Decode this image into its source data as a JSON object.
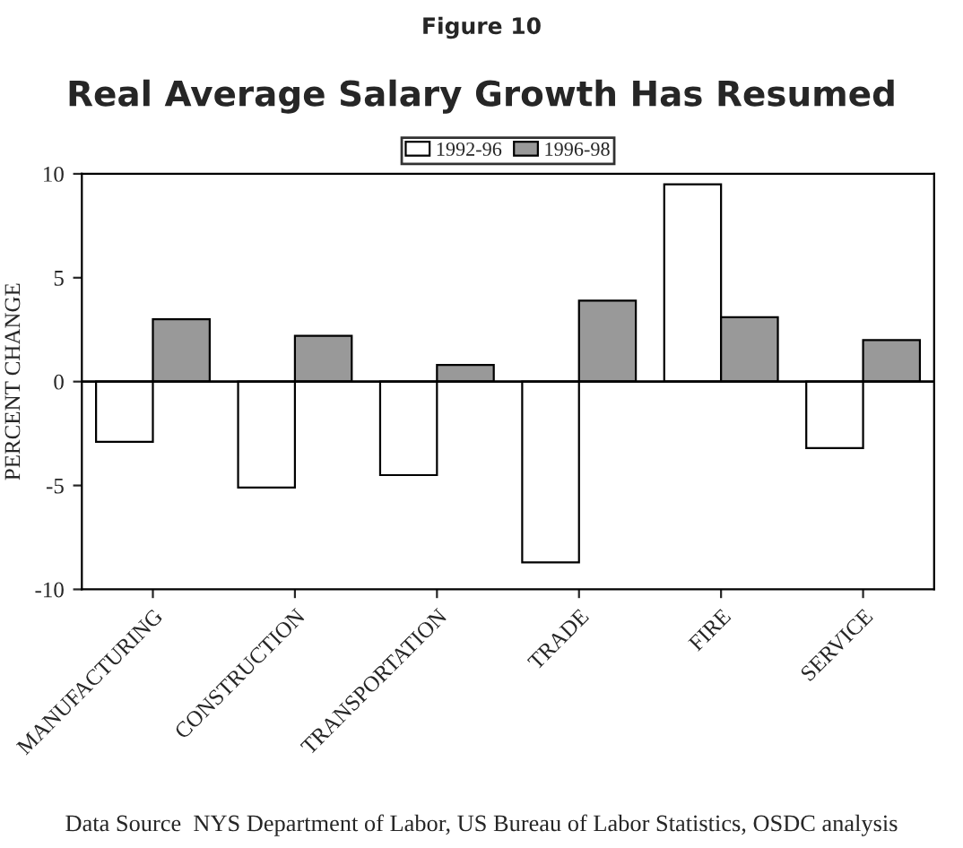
{
  "chart_data": {
    "type": "bar",
    "subtitle": "Figure 10",
    "title": "Real Average Salary Growth Has Resumed",
    "ylabel": "PERCENT CHANGE",
    "categories": [
      "MANUFACTURING",
      "CONSTRUCTION",
      "TRANSPORTATION",
      "TRADE",
      "FIRE",
      "SERVICE"
    ],
    "series": [
      {
        "name": "1992-96",
        "color": "#ffffff",
        "values": [
          -2.9,
          -5.1,
          -4.5,
          -8.7,
          9.5,
          -3.2
        ]
      },
      {
        "name": "1996-98",
        "color": "#999999",
        "values": [
          3.0,
          2.2,
          0.8,
          3.9,
          3.1,
          2.0
        ]
      }
    ],
    "ref_lines": [
      {
        "axis": "y",
        "value": 0
      }
    ],
    "ylim": [
      -10,
      10
    ],
    "yticks": [
      -10,
      -5,
      0,
      5,
      10
    ],
    "grid": false,
    "legend": "top",
    "annotations": [
      "Data Source  NYS Department of Labor, US Bureau of Labor Statistics, OSDC analysis"
    ]
  }
}
